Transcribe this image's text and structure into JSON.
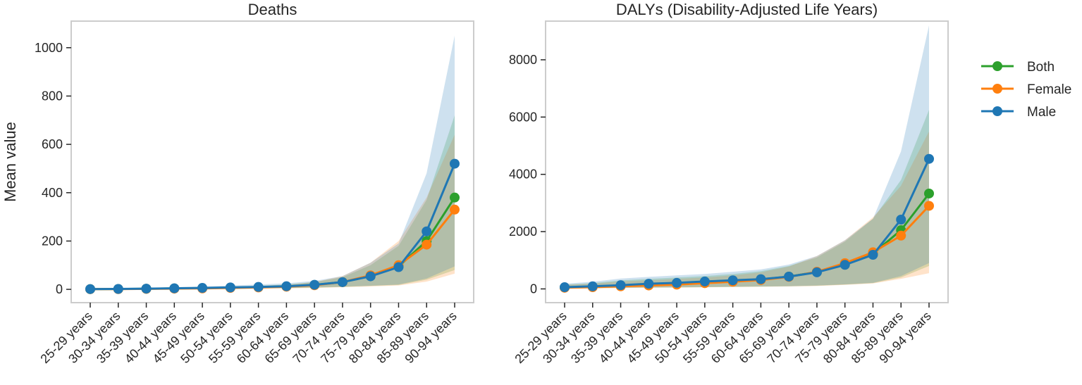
{
  "figure": {
    "legend": [
      {
        "name": "Both",
        "color": "#2ca02c"
      },
      {
        "name": "Female",
        "color": "#ff7f0e"
      },
      {
        "name": "Male",
        "color": "#1f77b4"
      }
    ]
  },
  "chart_data": [
    {
      "type": "line",
      "title": "Deaths",
      "xlabel": "",
      "ylabel": "Mean value",
      "ylim": [
        -55,
        1110
      ],
      "yticks": [
        0,
        200,
        400,
        600,
        800,
        1000
      ],
      "categories": [
        "25-29 years",
        "30-34 years",
        "35-39 years",
        "40-44 years",
        "45-49 years",
        "50-54 years",
        "55-59 years",
        "60-64 years",
        "65-69 years",
        "70-74 years",
        "75-79 years",
        "80-84 years",
        "85-89 years",
        "90-94 years"
      ],
      "series": [
        {
          "name": "Both",
          "color": "#2ca02c",
          "values": [
            1,
            1.5,
            2.5,
            4,
            5,
            7,
            9,
            12,
            18,
            30,
            55,
            95,
            200,
            380
          ],
          "lower": [
            0,
            0.5,
            1,
            2,
            2.5,
            3,
            4,
            5,
            7,
            10,
            14,
            18,
            40,
            80
          ],
          "upper": [
            3,
            4,
            5,
            7,
            9,
            12,
            15,
            20,
            30,
            50,
            100,
            180,
            370,
            720
          ]
        },
        {
          "name": "Female",
          "color": "#ff7f0e",
          "values": [
            0.8,
            1,
            2,
            3,
            4,
            6,
            8,
            11,
            17,
            30,
            58,
            100,
            185,
            330
          ],
          "lower": [
            0,
            0.3,
            0.7,
            1.5,
            2,
            2.5,
            3,
            4,
            6,
            9,
            12,
            16,
            32,
            65
          ],
          "upper": [
            2.5,
            3,
            4,
            6,
            8,
            11,
            14,
            19,
            30,
            55,
            110,
            200,
            380,
            640
          ]
        },
        {
          "name": "Male",
          "color": "#1f77b4",
          "values": [
            1.2,
            1.8,
            3,
            4.5,
            6,
            8,
            10,
            13,
            19,
            30,
            54,
            92,
            240,
            520
          ],
          "lower": [
            0,
            0.6,
            1.2,
            2.2,
            3,
            3.5,
            4.5,
            5.5,
            8,
            11,
            15,
            20,
            45,
            95
          ],
          "upper": [
            4,
            5,
            7,
            9,
            12,
            16,
            20,
            25,
            35,
            55,
            110,
            190,
            480,
            1050
          ]
        }
      ]
    },
    {
      "type": "line",
      "title": "DALYs (Disability-Adjusted Life Years)",
      "xlabel": "",
      "ylabel": "",
      "ylim": [
        -480,
        9350
      ],
      "yticks": [
        0,
        2000,
        4000,
        6000,
        8000
      ],
      "categories": [
        "25-29 years",
        "30-34 years",
        "35-39 years",
        "40-44 years",
        "45-49 years",
        "50-54 years",
        "55-59 years",
        "60-64 years",
        "65-69 years",
        "70-74 years",
        "75-79 years",
        "80-84 years",
        "85-89 years",
        "90-94 years"
      ],
      "series": [
        {
          "name": "Both",
          "color": "#2ca02c",
          "values": [
            50,
            75,
            110,
            150,
            180,
            230,
            280,
            330,
            430,
            590,
            860,
            1230,
            2050,
            3330
          ],
          "lower": [
            15,
            25,
            35,
            45,
            50,
            60,
            70,
            80,
            90,
            110,
            150,
            200,
            400,
            800
          ],
          "upper": [
            150,
            200,
            300,
            350,
            400,
            450,
            520,
            620,
            800,
            1100,
            1650,
            2450,
            3800,
            6250
          ]
        },
        {
          "name": "Female",
          "color": "#ff7f0e",
          "values": [
            40,
            60,
            90,
            120,
            150,
            200,
            250,
            310,
            420,
            600,
            900,
            1280,
            1860,
            2900
          ],
          "lower": [
            10,
            20,
            30,
            40,
            45,
            55,
            65,
            75,
            85,
            100,
            140,
            190,
            350,
            550
          ],
          "upper": [
            140,
            180,
            260,
            300,
            350,
            400,
            470,
            580,
            780,
            1150,
            1700,
            2500,
            3600,
            5500
          ]
        },
        {
          "name": "Male",
          "color": "#1f77b4",
          "values": [
            60,
            90,
            130,
            180,
            210,
            260,
            300,
            340,
            430,
            580,
            840,
            1190,
            2420,
            4540
          ],
          "lower": [
            20,
            30,
            40,
            50,
            55,
            65,
            75,
            85,
            95,
            120,
            160,
            210,
            450,
            900
          ],
          "upper": [
            180,
            250,
            360,
            420,
            470,
            520,
            600,
            680,
            850,
            1150,
            1700,
            2450,
            4800,
            9200
          ]
        }
      ]
    }
  ]
}
